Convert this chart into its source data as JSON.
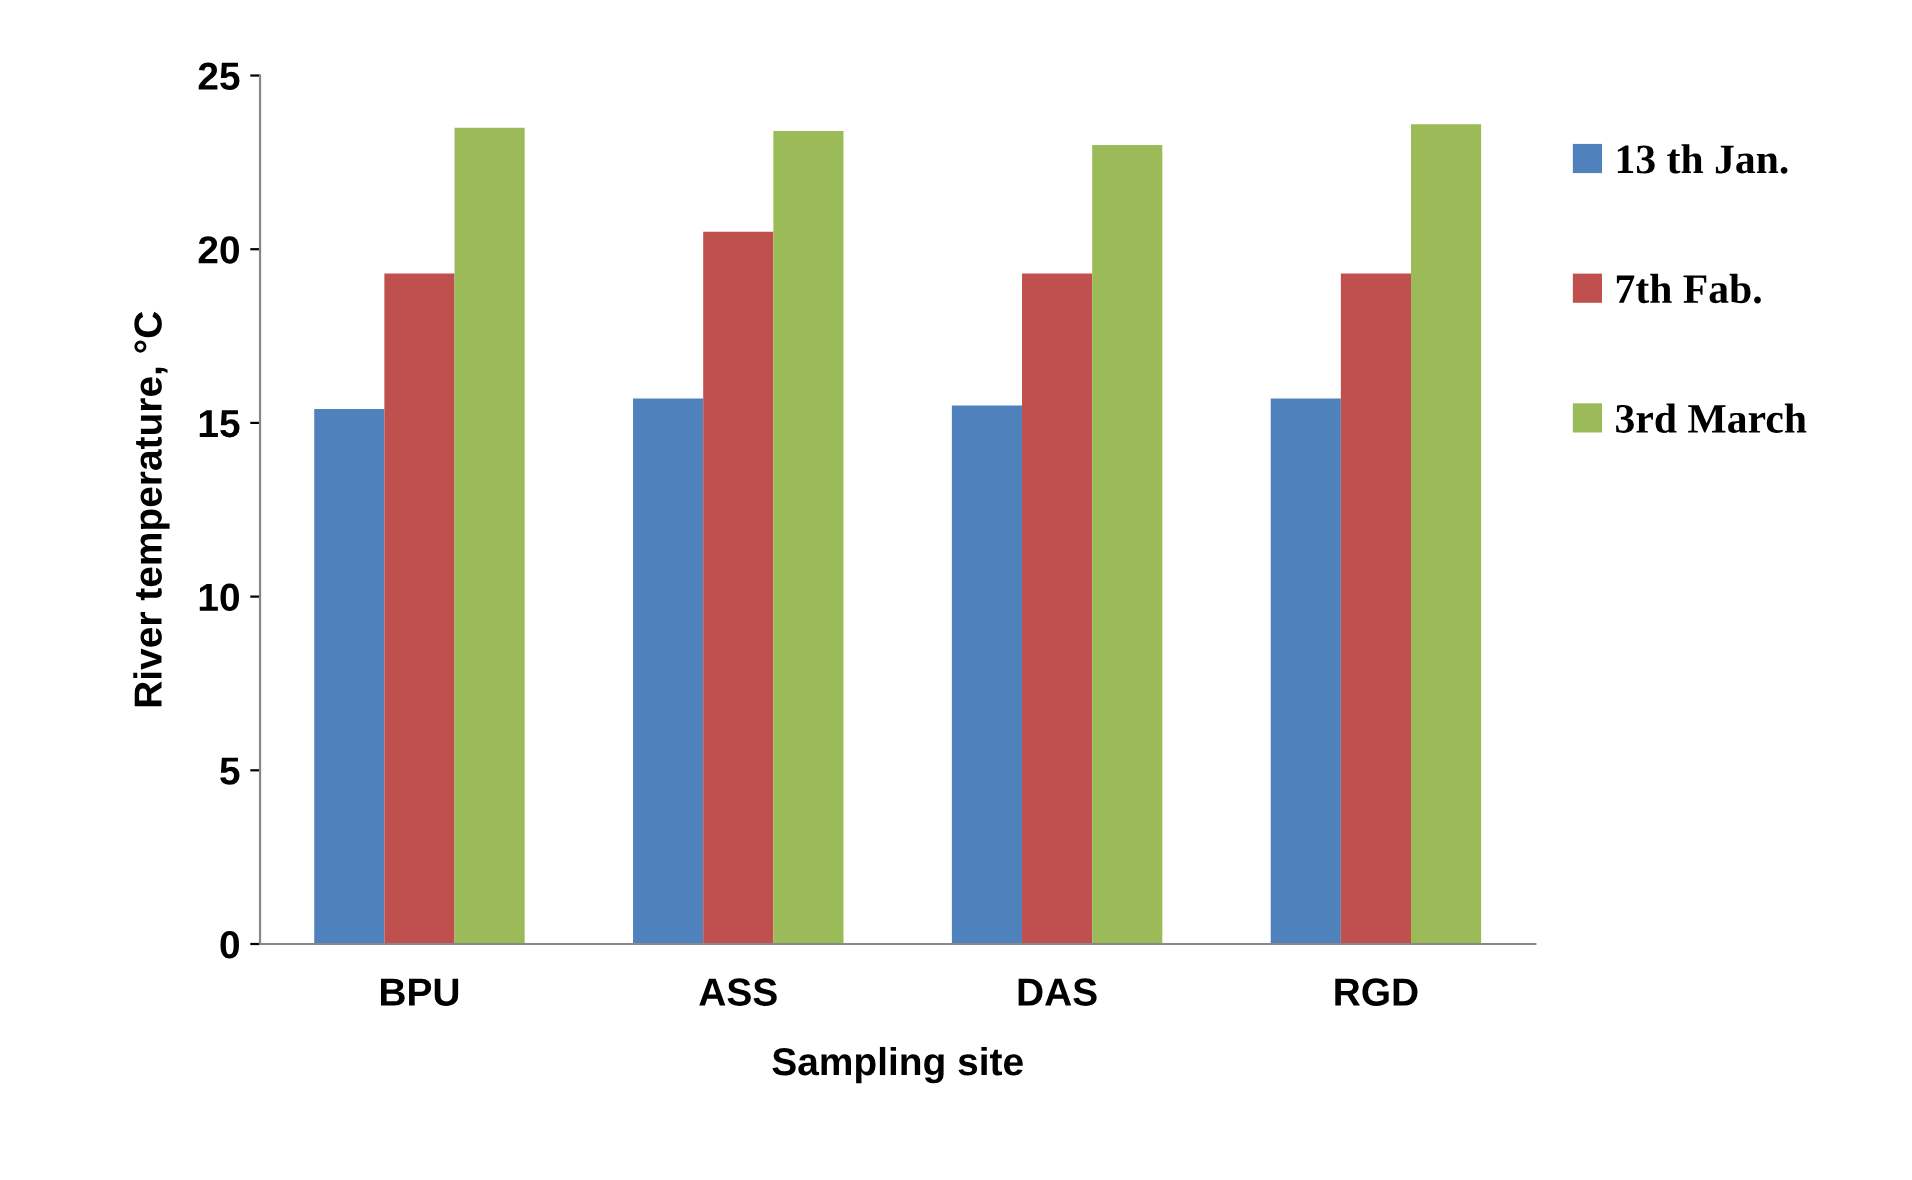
{
  "chart_data": {
    "type": "bar",
    "xlabel": "Sampling site",
    "ylabel": "River temperature, °C",
    "categories": [
      "BPU",
      "ASS",
      "DAS",
      "RGD"
    ],
    "series": [
      {
        "name": "13 th Jan.",
        "color": "#4f81bd",
        "values": [
          15.4,
          15.7,
          15.5,
          15.7
        ]
      },
      {
        "name": "7th Fab.",
        "color": "#c0504d",
        "values": [
          19.3,
          20.5,
          19.3,
          19.3
        ]
      },
      {
        "name": "3rd March",
        "color": "#9bbb59",
        "values": [
          23.5,
          23.4,
          23.0,
          23.6
        ]
      }
    ],
    "ylim": [
      0,
      25
    ],
    "yticks": [
      0,
      5,
      10,
      15,
      20,
      25
    ],
    "grid": false,
    "legend": "right"
  }
}
